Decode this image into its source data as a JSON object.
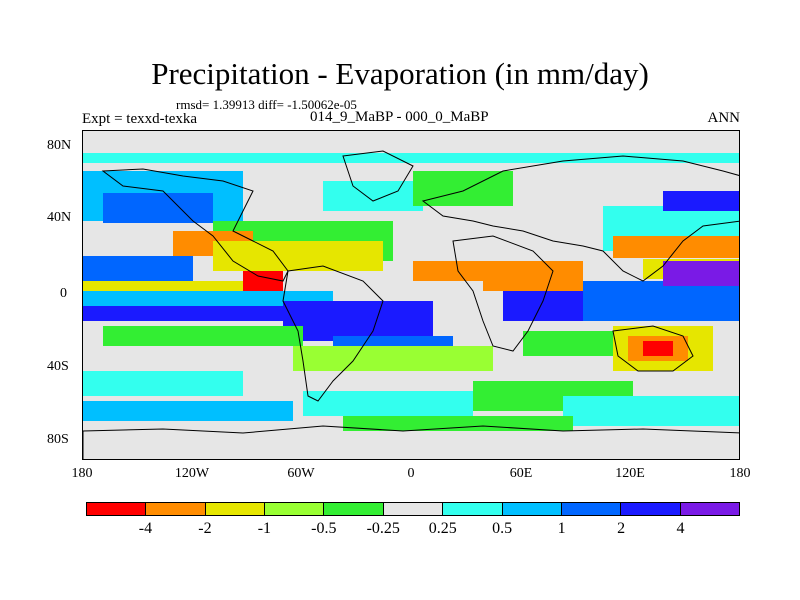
{
  "title": "Precipitation - Evaporation (in mm/day)",
  "stats_text": "rmsd= 1.39913 diff= -1.50062e-05",
  "experiment_label": "Expt = texxd-texka",
  "period_label": "014_9_MaBP - 000_0_MaBP",
  "season_label": "ANN",
  "map": {
    "lat_ticks": [
      "80N",
      "40N",
      "0",
      "40S",
      "80S"
    ],
    "lon_ticks": [
      "180",
      "120W",
      "60W",
      "0",
      "60E",
      "120E",
      "180"
    ],
    "background_color": "#e6e6e6",
    "coastline_color": "#000000"
  },
  "colorbar": {
    "colors": [
      "#ff0000",
      "#ff8c00",
      "#e6e600",
      "#99ff33",
      "#33ee33",
      "#e6e6e6",
      "#33ffee",
      "#00bfff",
      "#0066ff",
      "#1a1aff",
      "#7a1ae6"
    ],
    "labels": [
      "-4",
      "-2",
      "-1",
      "-0.5",
      "-0.25",
      "0.25",
      "0.5",
      "1",
      "2",
      "4"
    ]
  }
}
